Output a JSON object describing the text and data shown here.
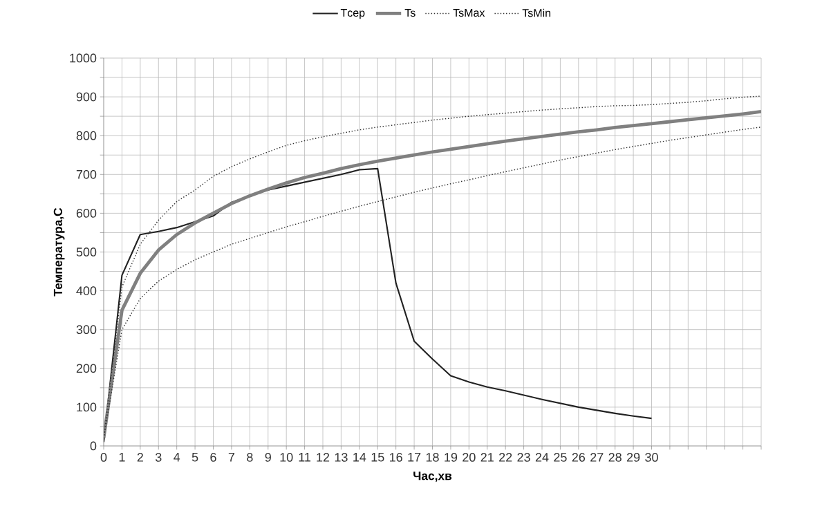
{
  "chart_data": {
    "type": "line",
    "xlabel": "Час,хв",
    "ylabel": "Температура,С",
    "categories": [
      "0",
      "1",
      "2",
      "3",
      "4",
      "5",
      "6",
      "7",
      "8",
      "9",
      "10",
      "11",
      "12",
      "13",
      "14",
      "15",
      "16",
      "17",
      "18",
      "19",
      "20",
      "21",
      "22",
      "23",
      "24",
      "25",
      "26",
      "27",
      "28",
      "29",
      "30",
      null,
      null,
      null,
      null,
      null,
      null
    ],
    "series": [
      {
        "name": "Tсер",
        "color": "#222222",
        "line_style": "solid",
        "values": [
          10,
          440,
          545,
          553,
          563,
          578,
          593,
          628,
          645,
          660,
          670,
          680,
          690,
          700,
          712,
          715,
          420,
          270,
          224,
          181,
          165,
          152,
          142,
          131,
          120,
          110,
          100,
          92,
          84,
          77,
          71,
          null,
          null,
          null,
          null,
          null,
          null
        ]
      },
      {
        "name": "Ts",
        "color": "#808080",
        "line_style": "solid",
        "values": [
          20,
          350,
          445,
          505,
          545,
          575,
          600,
          625,
          645,
          662,
          678,
          692,
          703,
          715,
          725,
          734,
          742,
          750,
          758,
          765,
          772,
          779,
          786,
          792,
          798,
          804,
          810,
          815,
          821,
          826,
          831,
          836,
          841,
          846,
          851,
          856,
          862
        ]
      },
      {
        "name": "TsMax",
        "color": "#333333",
        "line_style": "dotted",
        "values": [
          20,
          410,
          520,
          582,
          630,
          660,
          695,
          720,
          740,
          758,
          775,
          787,
          797,
          806,
          815,
          822,
          828,
          834,
          840,
          845,
          850,
          854,
          858,
          862,
          866,
          869,
          872,
          875,
          877,
          878,
          880,
          883,
          886,
          890,
          895,
          899,
          902
        ]
      },
      {
        "name": "TsMin",
        "color": "#333333",
        "line_style": "dotted",
        "values": [
          20,
          300,
          380,
          425,
          455,
          480,
          500,
          520,
          535,
          550,
          565,
          578,
          592,
          605,
          618,
          630,
          642,
          654,
          665,
          676,
          686,
          697,
          707,
          717,
          727,
          737,
          746,
          755,
          764,
          772,
          780,
          788,
          795,
          802,
          809,
          816,
          822
        ]
      }
    ],
    "ylim": [
      0,
      1000
    ],
    "yticks": [
      0,
      {
        "value": 50,
        "label": null
      },
      100,
      {
        "value": 150,
        "label": null
      },
      200,
      {
        "value": 250,
        "label": null
      },
      300,
      {
        "value": 350,
        "label": null
      },
      400,
      {
        "value": 450,
        "label": null
      },
      500,
      {
        "value": 550,
        "label": null
      },
      600,
      {
        "value": 650,
        "label": null
      },
      700,
      {
        "value": 750,
        "label": null
      },
      800,
      {
        "value": 850,
        "label": null
      },
      900,
      {
        "value": 950,
        "label": null
      },
      1000
    ],
    "grid": true,
    "legend": "top",
    "marker": "none"
  }
}
